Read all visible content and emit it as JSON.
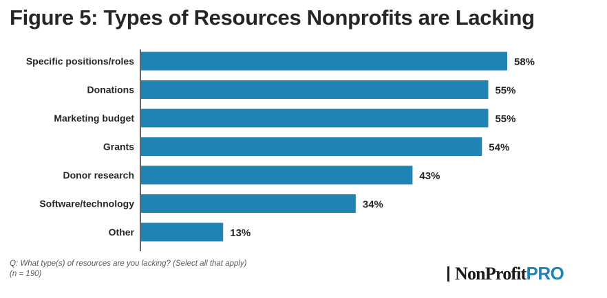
{
  "chart_data": {
    "type": "bar",
    "orientation": "horizontal",
    "title": "Figure 5: Types of Resources Nonprofits are Lacking",
    "categories": [
      "Specific positions/roles",
      "Donations",
      "Marketing budget",
      "Grants",
      "Donor research",
      "Software/technology",
      "Other"
    ],
    "values": [
      58,
      55,
      55,
      54,
      43,
      34,
      13
    ],
    "value_labels": [
      "58%",
      "55%",
      "55%",
      "54%",
      "43%",
      "34%",
      "13%"
    ],
    "xlim": [
      0,
      58
    ],
    "bar_color": "#1f83b4",
    "grid": false,
    "legend": "none"
  },
  "footnote": {
    "question": "Q: What type(s) of resources are you lacking? (Select all that apply)",
    "sample": "(n = 190)"
  },
  "logo": {
    "word": "NonProfit",
    "suffix": "PRO",
    "accent_color": "#1f83b4"
  }
}
